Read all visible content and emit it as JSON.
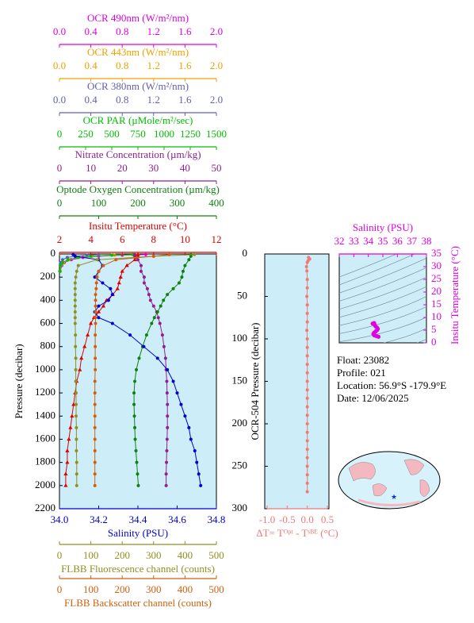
{
  "chart_data": [
    {
      "type": "line",
      "y_label": "Pressure (decibar)",
      "ylim": [
        0,
        2200
      ],
      "yticks": [
        0,
        200,
        400,
        600,
        800,
        1000,
        1200,
        1400,
        1600,
        1800,
        2000,
        2200
      ],
      "inverted": true,
      "axes": [
        {
          "title": "OCR 490nm (W/m²/nm)",
          "color": "#e000e0",
          "side": "top",
          "xlim": [
            0,
            2
          ],
          "xticks": [
            {
              "value": 0,
              "label": "0.0"
            },
            0.4,
            0.8,
            1.2,
            1.6,
            {
              "value": 2,
              "label": "2.0"
            }
          ],
          "pressure": [
            5,
            10,
            20,
            30,
            50,
            75,
            100,
            150
          ],
          "values": [
            1.1,
            0.8,
            0.5,
            0.3,
            0.15,
            0.06,
            0.03,
            0.01
          ]
        },
        {
          "title": "OCR 443nm (W/m²/nm)",
          "color": "#f0a000",
          "side": "top",
          "xlim": [
            0,
            2
          ],
          "xticks": [
            {
              "value": 0,
              "label": "0.0"
            },
            0.4,
            0.8,
            1.2,
            1.6,
            {
              "value": 2,
              "label": "2.0"
            }
          ],
          "pressure": [
            5,
            10,
            20,
            30,
            50,
            75,
            100,
            150
          ],
          "values": [
            1.0,
            0.7,
            0.42,
            0.25,
            0.12,
            0.05,
            0.02,
            0.01
          ]
        },
        {
          "title": "OCR 380nm (W/m²/nm)",
          "color": "#6060b0",
          "side": "top",
          "xlim": [
            0,
            2
          ],
          "xticks": [
            {
              "value": 0,
              "label": "0.0"
            },
            0.4,
            0.8,
            1.2,
            1.6,
            {
              "value": 2,
              "label": "2.0"
            }
          ],
          "pressure": [
            5,
            10,
            20,
            30,
            50,
            75,
            100,
            150
          ],
          "values": [
            0.5,
            0.35,
            0.2,
            0.1,
            0.04,
            0.015,
            0.01,
            0.005
          ]
        },
        {
          "title": "OCR PAR (µMole/m²/sec)",
          "color": "#00c000",
          "side": "top",
          "xlim": [
            0,
            1500
          ],
          "xticks": [
            0,
            250,
            500,
            750,
            1000,
            1250,
            1500
          ],
          "pressure": [
            5,
            10,
            20,
            30,
            50,
            75,
            100,
            150
          ],
          "values": [
            700,
            500,
            300,
            180,
            80,
            30,
            12,
            3
          ]
        },
        {
          "title": "Nitrate Concentration (µm/kg)",
          "color": "#902090",
          "side": "top",
          "xlim": [
            0,
            50
          ],
          "xticks": [
            0,
            10,
            20,
            30,
            40,
            50
          ],
          "pressure": [
            5,
            20,
            50,
            100,
            150,
            200,
            250,
            300,
            350,
            400,
            450,
            500,
            550,
            600,
            700,
            800,
            900,
            1000,
            1100,
            1200,
            1300,
            1400,
            1500,
            1600,
            1700,
            1800,
            1900,
            2000
          ],
          "values": [
            24,
            24,
            25,
            26,
            26,
            27,
            27,
            28,
            28.5,
            29,
            30,
            31,
            31.5,
            32,
            32.8,
            33.3,
            33.8,
            34,
            34.2,
            34.3,
            34.4,
            34.4,
            34.4,
            34.3,
            34.2,
            34.1,
            34,
            34
          ]
        },
        {
          "title": "Optode Oxygen Concentration (µm/kg)",
          "color": "#108010",
          "side": "top",
          "xlim": [
            0,
            400
          ],
          "xticks": [
            0,
            100,
            200,
            300,
            400
          ],
          "pressure": [
            5,
            20,
            50,
            100,
            150,
            200,
            250,
            300,
            350,
            400,
            450,
            500,
            550,
            600,
            700,
            800,
            900,
            1000,
            1100,
            1200,
            1300,
            1400,
            1500,
            1600,
            1700,
            1800,
            1900,
            2000
          ],
          "values": [
            335,
            335,
            330,
            320,
            315,
            312,
            305,
            290,
            275,
            265,
            258,
            250,
            242,
            235,
            222,
            212,
            203,
            196,
            192,
            190,
            190,
            191,
            192,
            193,
            195,
            197,
            199,
            201
          ]
        },
        {
          "title": "Insitu Temperature (°C)",
          "color": "#e00000",
          "side": "top",
          "xlim": [
            2,
            12
          ],
          "xticks": [
            2,
            4,
            6,
            8,
            10,
            12
          ],
          "pressure": [
            5,
            20,
            50,
            100,
            150,
            200,
            250,
            300,
            350,
            400,
            450,
            500,
            550,
            600,
            700,
            800,
            900,
            1000,
            1100,
            1200,
            1300,
            1400,
            1500,
            1600,
            1700,
            1800,
            1900,
            2000
          ],
          "values": [
            7.0,
            7.0,
            6.8,
            6.3,
            6.0,
            5.9,
            5.8,
            5.7,
            5.4,
            5.0,
            4.8,
            4.5,
            4.2,
            4.0,
            3.8,
            3.6,
            3.4,
            3.3,
            3.1,
            3.0,
            2.9,
            2.8,
            2.7,
            2.6,
            2.5,
            2.5,
            2.4,
            2.4
          ]
        },
        {
          "title": "Salinity (PSU)",
          "color": "#0000d0",
          "side": "bottom",
          "xlim": [
            34,
            34.8
          ],
          "xticks": [
            {
              "value": 34,
              "label": "34.0"
            },
            34.2,
            34.4,
            34.6,
            34.8
          ],
          "pressure": [
            5,
            20,
            50,
            100,
            150,
            200,
            250,
            300,
            350,
            400,
            450,
            500,
            550,
            600,
            700,
            800,
            900,
            1000,
            1100,
            1200,
            1300,
            1400,
            1500,
            1600,
            1700,
            1800,
            1900,
            2000
          ],
          "values": [
            34.07,
            34.08,
            34.2,
            34.22,
            34.2,
            34.18,
            34.22,
            34.26,
            34.27,
            34.25,
            34.2,
            34.18,
            34.2,
            34.27,
            34.36,
            34.43,
            34.5,
            34.55,
            34.58,
            34.6,
            34.62,
            34.64,
            34.66,
            34.67,
            34.69,
            34.7,
            34.71,
            34.72
          ]
        },
        {
          "title": "FLBB Fluorescence channel (counts)",
          "color": "#909020",
          "side": "bottom",
          "xlim": [
            0,
            500
          ],
          "xticks": [
            0,
            100,
            200,
            300,
            400,
            500
          ],
          "pressure": [
            5,
            20,
            50,
            100,
            150,
            200,
            250,
            300,
            350,
            400,
            450,
            500,
            550,
            600,
            700,
            800,
            900,
            1000,
            1100,
            1200,
            1300,
            1400,
            1500,
            1600,
            1700,
            1800,
            1900,
            2000
          ],
          "values": [
            430,
            300,
            120,
            60,
            55,
            52,
            50,
            50,
            50,
            50,
            50,
            50,
            50,
            50,
            51,
            51,
            52,
            52,
            52,
            53,
            53,
            53,
            54,
            54,
            54,
            55,
            55,
            55
          ]
        },
        {
          "title": "FLBB Backscatter channel (counts)",
          "color": "#d06010",
          "side": "bottom",
          "xlim": [
            0,
            500
          ],
          "xticks": [
            0,
            100,
            200,
            300,
            400,
            500
          ],
          "pressure": [
            5,
            20,
            50,
            100,
            150,
            200,
            250,
            300,
            350,
            400,
            450,
            500,
            550,
            600,
            700,
            800,
            900,
            1000,
            1100,
            1200,
            1300,
            1400,
            1500,
            1600,
            1700,
            1800,
            1900,
            2000
          ],
          "values": [
            350,
            300,
            180,
            140,
            125,
            120,
            118,
            117,
            115,
            115,
            115,
            115,
            115,
            115,
            114,
            114,
            114,
            114,
            113,
            113,
            113,
            113,
            113,
            113,
            113,
            113,
            113,
            113
          ]
        }
      ]
    },
    {
      "type": "line",
      "y_label": "OCR-504 Pressure (decibar)",
      "x_label": "ΔT= Tᴼᵖᵗ - Tˢᴮᴱ (°C)",
      "color": "#f07878",
      "xlim": [
        -1,
        0.5
      ],
      "xticks": [
        {
          "value": -1,
          "label": "-1.0"
        },
        -0.5,
        {
          "value": 0,
          "label": "0.0"
        },
        0.5
      ],
      "ylim": [
        0,
        300
      ],
      "yticks": [
        0,
        50,
        100,
        150,
        200,
        250,
        300
      ],
      "inverted": true,
      "pressure": [
        4,
        6,
        8,
        10,
        15,
        20,
        30,
        40,
        50,
        60,
        70,
        80,
        90,
        100,
        110,
        120,
        130,
        140,
        150,
        160,
        170,
        180,
        190,
        200,
        210,
        220,
        230,
        240,
        250,
        260,
        270,
        280
      ],
      "values": [
        0.03,
        0.06,
        0.02,
        0.0,
        -0.02,
        -0.01,
        0.0,
        0.0,
        -0.01,
        0.0,
        0.0,
        0.0,
        -0.01,
        0.0,
        0.0,
        0.0,
        0.0,
        0.0,
        0.0,
        0.0,
        0.0,
        0.0,
        0.0,
        0.0,
        0.0,
        0.0,
        0.0,
        0.0,
        0.0,
        0.0,
        0.0,
        0.0
      ]
    },
    {
      "type": "scatter",
      "x_label": "Salinity (PSU)",
      "y_label": "Insitu Temperature (°C)",
      "color": "#e000e0",
      "xlim": [
        32,
        38
      ],
      "xticks": [
        32,
        33,
        34,
        35,
        36,
        37,
        38
      ],
      "ylim": [
        0,
        35
      ],
      "yticks": [
        0,
        5,
        10,
        15,
        20,
        25,
        30,
        35
      ],
      "x": [
        34.3,
        34.4,
        34.45,
        34.5,
        34.6,
        34.65,
        34.6,
        34.5,
        34.4,
        34.35,
        34.4,
        34.5,
        34.6,
        34.7
      ],
      "values": [
        7.6,
        7.8,
        7.0,
        6.5,
        6.0,
        5.5,
        5.0,
        4.5,
        4.0,
        3.5,
        3.0,
        2.8,
        2.6,
        2.4
      ]
    }
  ],
  "info": {
    "float": "Float:  23082",
    "profile": "Profile:  021",
    "location": "Location:  56.9°S  -179.9°E",
    "date": "Date:  12/06/2025"
  }
}
